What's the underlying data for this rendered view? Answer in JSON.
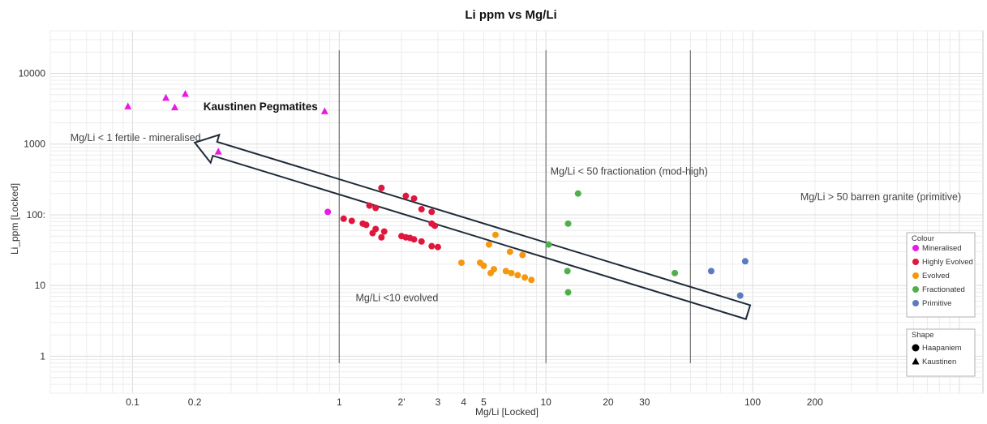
{
  "chart_data": {
    "type": "scatter",
    "title": "Li ppm vs Mg/Li",
    "xlabel": "Mg/Li [Locked]",
    "ylabel": "Li_ppm [Locked]",
    "x_scale": "log",
    "y_scale": "log",
    "xlim": [
      0.04,
      1300
    ],
    "ylim": [
      0.3,
      40000
    ],
    "grid": true,
    "x_ticks": [
      {
        "value": 0.1,
        "label": "0.1"
      },
      {
        "value": 0.2,
        "label": "0.2"
      },
      {
        "value": 1,
        "label": "1"
      },
      {
        "value": 2,
        "label": "2'"
      },
      {
        "value": 3,
        "label": "3"
      },
      {
        "value": 4,
        "label": "4"
      },
      {
        "value": 5,
        "label": "5"
      },
      {
        "value": 10,
        "label": "10"
      },
      {
        "value": 20,
        "label": "20"
      },
      {
        "value": 30,
        "label": "30"
      },
      {
        "value": 100,
        "label": "100"
      },
      {
        "value": 200,
        "label": "200"
      }
    ],
    "y_ticks": [
      {
        "value": 1,
        "label": "1"
      },
      {
        "value": 10,
        "label": "10"
      },
      {
        "value": 100,
        "label": "100:"
      },
      {
        "value": 1000,
        "label": "1000"
      },
      {
        "value": 10000,
        "label": "10000"
      }
    ],
    "reference_lines_x": [
      1,
      10,
      50
    ],
    "annotations": [
      {
        "text": "Kaustinen Pegmatites",
        "bold": true,
        "x": 0.22,
        "y": 3000
      },
      {
        "text": "Mg/Li < 1 fertile - mineralised",
        "bold": false,
        "x": 0.05,
        "y": 1100
      },
      {
        "text": "Mg/Li < 50 fractionation (mod-high)",
        "bold": false,
        "x": 10.5,
        "y": 370
      },
      {
        "text": "Mg/Li > 50 barren granite (primitive)",
        "bold": false,
        "x": 170,
        "y": 160
      },
      {
        "text": "Mg/Li  <10 evolved",
        "bold": false,
        "x": 1.2,
        "y": 6
      }
    ],
    "arrow": {
      "from": {
        "x": 95,
        "y": 4.2
      },
      "to": {
        "x": 0.2,
        "y": 1050
      }
    },
    "legend": {
      "placement": "right",
      "colour_title": "Colour",
      "shape_title": "Shape",
      "colours": [
        {
          "name": "Mineralised",
          "color": "#e81be3"
        },
        {
          "name": "Highly Evolved",
          "color": "#e0163c"
        },
        {
          "name": "Evolved",
          "color": "#f4980f"
        },
        {
          "name": "Fractionated",
          "color": "#4fb04a"
        },
        {
          "name": "Primitive",
          "color": "#5b7bbf"
        }
      ],
      "shapes": [
        {
          "name": "Haapaniem",
          "shape": "circle"
        },
        {
          "name": "Kaustinen",
          "shape": "triangle"
        }
      ]
    },
    "series": [
      {
        "group": "Mineralised",
        "shape": "triangle",
        "points": [
          {
            "x": 0.095,
            "y": 3400
          },
          {
            "x": 0.145,
            "y": 4500
          },
          {
            "x": 0.16,
            "y": 3300
          },
          {
            "x": 0.18,
            "y": 5100
          },
          {
            "x": 0.26,
            "y": 780
          },
          {
            "x": 0.85,
            "y": 2900
          }
        ]
      },
      {
        "group": "Mineralised",
        "shape": "circle",
        "points": [
          {
            "x": 0.88,
            "y": 110
          }
        ]
      },
      {
        "group": "Highly Evolved",
        "shape": "circle",
        "points": [
          {
            "x": 1.6,
            "y": 240
          },
          {
            "x": 2.1,
            "y": 185
          },
          {
            "x": 2.3,
            "y": 170
          },
          {
            "x": 1.4,
            "y": 135
          },
          {
            "x": 1.5,
            "y": 125
          },
          {
            "x": 2.5,
            "y": 120
          },
          {
            "x": 2.8,
            "y": 110
          },
          {
            "x": 1.05,
            "y": 88
          },
          {
            "x": 1.15,
            "y": 82
          },
          {
            "x": 1.3,
            "y": 75
          },
          {
            "x": 1.35,
            "y": 72
          },
          {
            "x": 2.8,
            "y": 75
          },
          {
            "x": 2.9,
            "y": 70
          },
          {
            "x": 1.5,
            "y": 63
          },
          {
            "x": 1.45,
            "y": 55
          },
          {
            "x": 1.65,
            "y": 58
          },
          {
            "x": 1.6,
            "y": 48
          },
          {
            "x": 2.0,
            "y": 50
          },
          {
            "x": 2.1,
            "y": 48
          },
          {
            "x": 2.2,
            "y": 47
          },
          {
            "x": 2.3,
            "y": 45
          },
          {
            "x": 2.5,
            "y": 42
          },
          {
            "x": 2.8,
            "y": 36
          },
          {
            "x": 3.0,
            "y": 35
          }
        ]
      },
      {
        "group": "Evolved",
        "shape": "circle",
        "points": [
          {
            "x": 5.7,
            "y": 52
          },
          {
            "x": 5.3,
            "y": 38
          },
          {
            "x": 6.7,
            "y": 30
          },
          {
            "x": 7.7,
            "y": 27
          },
          {
            "x": 3.9,
            "y": 21
          },
          {
            "x": 4.8,
            "y": 21
          },
          {
            "x": 5.0,
            "y": 19
          },
          {
            "x": 5.6,
            "y": 17
          },
          {
            "x": 5.4,
            "y": 15
          },
          {
            "x": 6.4,
            "y": 16
          },
          {
            "x": 6.8,
            "y": 15
          },
          {
            "x": 7.3,
            "y": 14
          },
          {
            "x": 7.9,
            "y": 13
          },
          {
            "x": 8.5,
            "y": 12
          }
        ]
      },
      {
        "group": "Fractionated",
        "shape": "circle",
        "points": [
          {
            "x": 14.3,
            "y": 200
          },
          {
            "x": 12.8,
            "y": 75
          },
          {
            "x": 10.3,
            "y": 38
          },
          {
            "x": 12.7,
            "y": 16
          },
          {
            "x": 42,
            "y": 15
          },
          {
            "x": 12.8,
            "y": 8
          }
        ]
      },
      {
        "group": "Primitive",
        "shape": "circle",
        "points": [
          {
            "x": 63,
            "y": 16
          },
          {
            "x": 92,
            "y": 22
          },
          {
            "x": 87,
            "y": 7.2
          }
        ]
      }
    ]
  }
}
